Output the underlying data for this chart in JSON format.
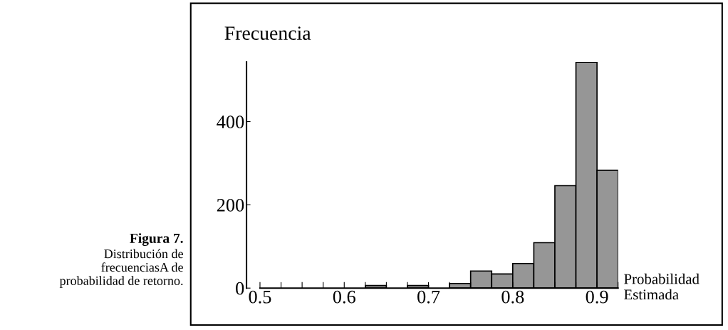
{
  "chart_data": {
    "type": "histogram",
    "bins": [
      0.625,
      0.65,
      0.675,
      0.7,
      0.725,
      0.75,
      0.775,
      0.8,
      0.825,
      0.85,
      0.875,
      0.9,
      0.925
    ],
    "values": [
      6,
      0,
      6,
      0,
      11,
      41,
      34,
      59,
      109,
      246,
      543,
      283
    ],
    "color": "#969696",
    "xlabel": "Probabilidad\nEstimada",
    "ylabel": "Frecuencia",
    "xlim": [
      0.484,
      0.925
    ],
    "ylim": [
      0,
      543
    ],
    "xticks": [
      0.5,
      {
        "value": 0.525,
        "label": null
      },
      {
        "value": 0.55,
        "label": null
      },
      {
        "value": 0.575,
        "label": null
      },
      0.6,
      {
        "value": 0.625,
        "label": null
      },
      {
        "value": 0.65,
        "label": null
      },
      {
        "value": 0.675,
        "label": null
      },
      0.7,
      {
        "value": 0.725,
        "label": null
      },
      {
        "value": 0.75,
        "label": null
      },
      {
        "value": 0.775,
        "label": null
      },
      0.8,
      {
        "value": 0.825,
        "label": null
      },
      {
        "value": 0.85,
        "label": null
      },
      {
        "value": 0.875,
        "label": null
      },
      0.9,
      {
        "value": 0.925,
        "label": null
      }
    ],
    "yticks": [
      0,
      200,
      400
    ],
    "grid": false,
    "annotations": [
      "Figura 7.",
      "Distribución de\nfrecuenciasA de\nprobabilidad de retorno."
    ]
  }
}
